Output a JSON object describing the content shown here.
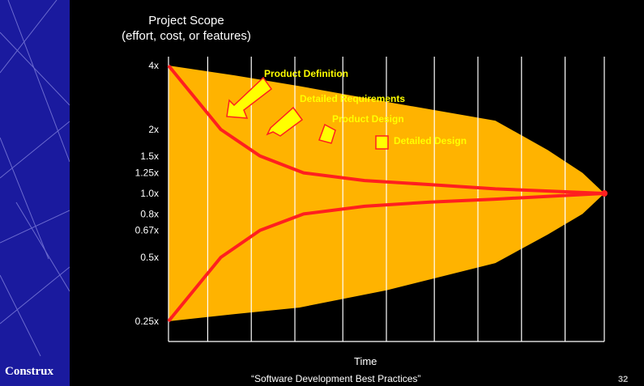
{
  "slide": {
    "brand": "Construx",
    "footer": "“Software Development Best Practices”",
    "page_number": "32"
  },
  "chart_data": {
    "type": "area",
    "title": "Project Scope",
    "subtitle": "(effort, cost, or features)",
    "xlabel": "Time",
    "ylabel": "",
    "yscale": "log",
    "ytick_labels": [
      "4x",
      "2x",
      "1.5x",
      "1.25x",
      "1.0x",
      "0.8x",
      "0.67x",
      "0.5x",
      "0.25x"
    ],
    "ytick_values": [
      4,
      2,
      1.5,
      1.25,
      1.0,
      0.8,
      0.67,
      0.5,
      0.25
    ],
    "grid": true,
    "colors": {
      "area": "#ffb300",
      "curve": "#ff1f1f",
      "grid": "#ffffff",
      "background": "#000000",
      "arrow": "#ffff00",
      "label": "#ffff00"
    },
    "x": [
      0,
      0.12,
      0.21,
      0.31,
      0.45,
      0.6,
      0.75,
      1.0
    ],
    "series": [
      {
        "values": [
          4.0,
          2.0,
          1.5,
          1.25,
          1.15,
          1.1,
          1.05,
          1.0
        ]
      },
      {
        "values": [
          0.25,
          0.5,
          0.67,
          0.8,
          0.87,
          0.91,
          0.94,
          1.0
        ]
      }
    ],
    "annotations": [
      {
        "text": "Product Definition",
        "x": 0.22
      },
      {
        "text": "Detailed Requirements",
        "x": 0.31
      },
      {
        "text": "Product Design",
        "x": 0.38
      },
      {
        "text": "Detailed Design",
        "x": 0.49
      }
    ]
  }
}
